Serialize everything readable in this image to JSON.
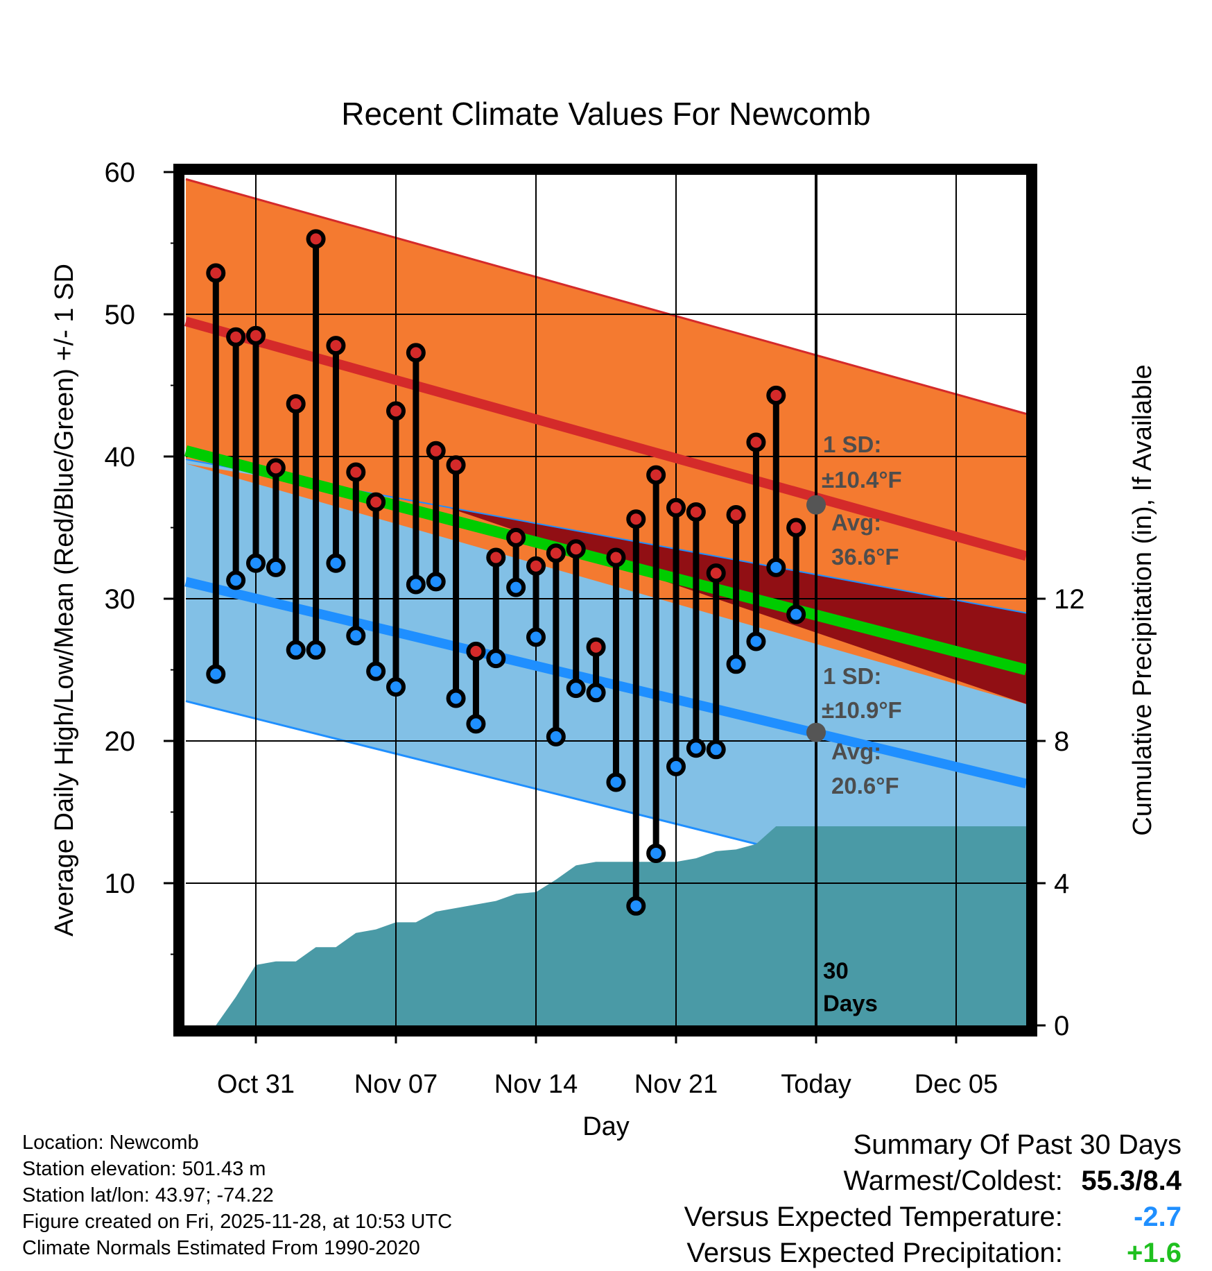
{
  "chart_data": {
    "type": "line",
    "title": "Recent Climate Values For Newcomb",
    "xlabel": "Day",
    "ylabel": "Average Daily High/Low/Mean (Red/Blue/Green) +/- 1 SD",
    "y2label": "Cumulative Precipitation (in), If Available",
    "ylim": [
      0,
      60
    ],
    "y2lim": [
      0,
      24
    ],
    "yticks": [
      10,
      20,
      30,
      40,
      50,
      60
    ],
    "y2ticks": [
      0,
      4,
      8,
      12
    ],
    "xlim": [
      -0.5,
      41.5
    ],
    "xticks": [
      {
        "day": 3,
        "label": "Oct 31"
      },
      {
        "day": 10,
        "label": "Nov 07"
      },
      {
        "day": 17,
        "label": "Nov 14"
      },
      {
        "day": 24,
        "label": "Nov 21"
      },
      {
        "day": 31,
        "label": "Today"
      },
      {
        "day": 38,
        "label": "Dec 05"
      }
    ],
    "today_day": 31,
    "normals": {
      "high_avg": [
        49.5,
        33.0
      ],
      "high_upper": [
        59.5,
        43.0
      ],
      "low_avg": [
        31.2,
        17.0
      ],
      "low_lower": [
        22.8,
        8.0
      ],
      "mean_avg": [
        40.4,
        25.0
      ]
    },
    "days": [
      1,
      2,
      3,
      4,
      5,
      6,
      7,
      8,
      9,
      10,
      11,
      12,
      13,
      14,
      15,
      16,
      17,
      18,
      19,
      20,
      21,
      22,
      23,
      24,
      25,
      26,
      27,
      28,
      29,
      30
    ],
    "series": [
      {
        "name": "Daily High",
        "color": "#d42a2a",
        "values": [
          52.9,
          48.4,
          48.5,
          39.2,
          43.7,
          55.3,
          47.8,
          38.9,
          36.8,
          43.2,
          47.3,
          40.4,
          39.4,
          26.3,
          32.9,
          34.3,
          32.3,
          33.2,
          33.5,
          26.6,
          32.9,
          35.6,
          38.7,
          36.4,
          36.1,
          31.8,
          35.9,
          41.0,
          44.3,
          35.0
        ]
      },
      {
        "name": "Daily Low",
        "color": "#1f8fff",
        "values": [
          24.7,
          31.3,
          32.5,
          32.2,
          26.4,
          26.4,
          32.5,
          27.4,
          24.9,
          23.8,
          31.0,
          31.2,
          23.0,
          21.2,
          25.8,
          30.8,
          27.3,
          20.3,
          23.7,
          23.4,
          17.1,
          8.4,
          12.1,
          18.2,
          19.5,
          19.4,
          25.4,
          27.0,
          32.2,
          28.9
        ]
      },
      {
        "name": "Cumulative Precipitation",
        "color": "#4a9aa6",
        "values": [
          0.0,
          0.8,
          1.7,
          1.8,
          1.8,
          2.2,
          2.2,
          2.6,
          2.7,
          2.9,
          2.9,
          3.2,
          3.3,
          3.4,
          3.5,
          3.7,
          3.75,
          4.1,
          4.5,
          4.6,
          4.6,
          4.6,
          4.6,
          4.6,
          4.7,
          4.9,
          4.95,
          5.1,
          5.6,
          5.6
        ]
      }
    ],
    "annotations": {
      "high_sd": "1 SD:",
      "high_sd_value": "±10.4°F",
      "high_avg_label": "Avg:",
      "high_avg_value": "36.6°F",
      "high_today_avg": 36.6,
      "low_sd": "1 SD:",
      "low_sd_value": "±10.9°F",
      "low_avg_label": "Avg:",
      "low_avg_value": "20.6°F",
      "low_today_avg": 20.6,
      "period_count": "30",
      "period_unit": "Days"
    },
    "colors": {
      "high_band": "#f47a30",
      "high_line": "#d42a2a",
      "low_band": "#82c0e6",
      "low_line": "#1f8fff",
      "mean_line": "#00cc00",
      "deficit_band": "#910f14",
      "precip": "#4a9aa6",
      "marker_today": "#555555"
    }
  },
  "info": {
    "location": "Location: Newcomb",
    "elevation": "Station elevation: 501.43 m",
    "latlon": "Station lat/lon: 43.97; -74.22",
    "created": "Figure created on Fri, 2025-11-28, at 10:53 UTC",
    "normals": "Climate Normals Estimated From 1990-2020"
  },
  "summary": {
    "title": "Summary Of Past 30 Days",
    "warm_cold_label": "Warmest/Coldest:",
    "warm_cold_value": "55.3/8.4",
    "temp_label": "Versus Expected Temperature:",
    "temp_value": "-2.7",
    "precip_label": "Versus Expected Precipitation:",
    "precip_value": "+1.6"
  }
}
